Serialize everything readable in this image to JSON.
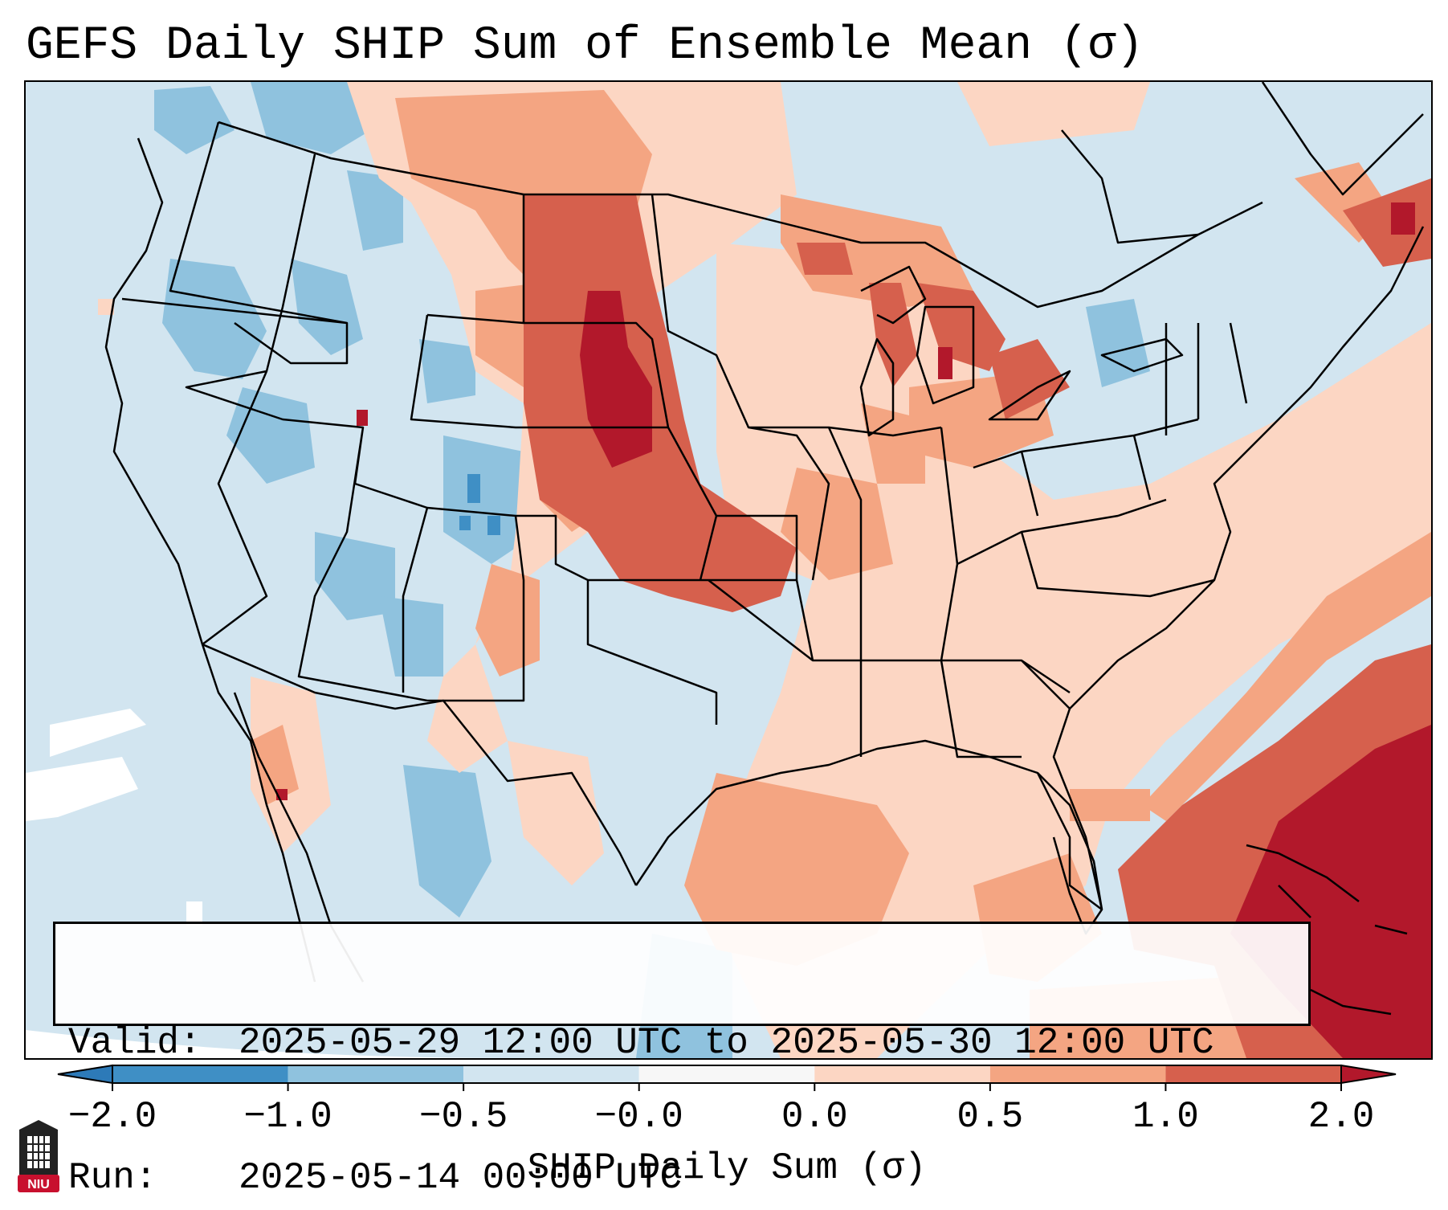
{
  "title": "GEFS Daily SHIP Sum of Ensemble Mean (σ)",
  "info": {
    "valid_label": "Valid:",
    "valid_value": "2025-05-29 12:00 UTC to 2025-05-30 12:00 UTC",
    "run_label": "Run:",
    "run_value": "2025-05-14 00:00 UTC"
  },
  "colorbar": {
    "label": "SHIP Daily Sum (σ)",
    "ticks": [
      "−2.0",
      "−1.0",
      "−0.5",
      "−0.0",
      "0.0",
      "0.5",
      "1.0",
      "2.0"
    ],
    "colors": [
      "#2d7ab8",
      "#3f8fc5",
      "#8fc2de",
      "#d2e5f0",
      "#fcd6c3",
      "#f4a582",
      "#d6604d",
      "#b2182b"
    ],
    "bins": [
      {
        "from": -2.0,
        "to": -1.0,
        "color": "#3f8fc5"
      },
      {
        "from": -1.0,
        "to": -0.5,
        "color": "#8fc2de"
      },
      {
        "from": -0.5,
        "to": -0.0,
        "color": "#d2e5f0"
      },
      {
        "from": -0.0,
        "to": 0.0,
        "color": "#f7f7f7"
      },
      {
        "from": 0.0,
        "to": 0.5,
        "color": "#fcd6c3"
      },
      {
        "from": 0.5,
        "to": 1.0,
        "color": "#f4a582"
      },
      {
        "from": 1.0,
        "to": 2.0,
        "color": "#d6604d"
      }
    ],
    "extend_low_color": "#2d7ab8",
    "extend_high_color": "#b2182b"
  },
  "logo": {
    "text": "NIU",
    "color": "#c8102e"
  }
}
